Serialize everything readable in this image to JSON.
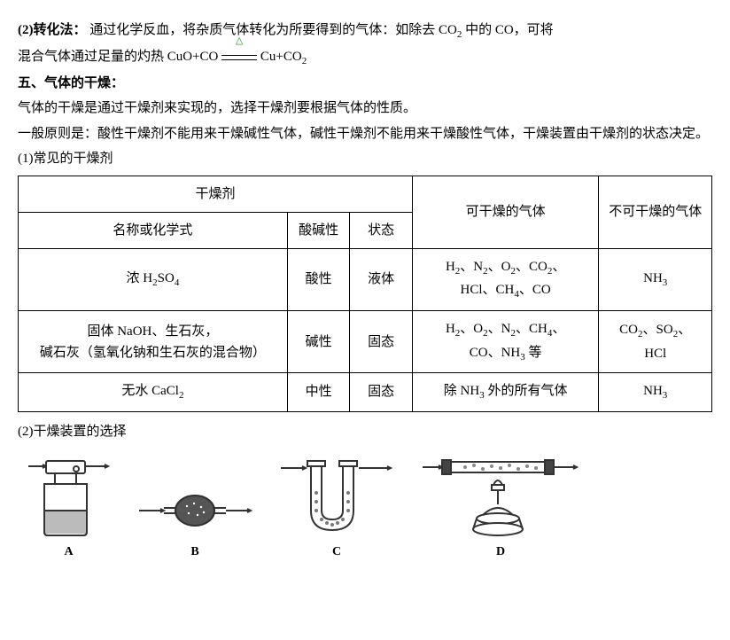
{
  "section2": {
    "heading_inline": "(2)转化法：",
    "text_part1": "通过化学反血，将杂质气体转化为所要得到的气体：如除去 CO",
    "text_part2": " 中的 CO，可将",
    "line2_a": "混合气体通过足量的灼热 CuO+CO",
    "line2_b": "Cu+CO"
  },
  "section5": {
    "heading": "五、气体的干燥：",
    "p1": "气体的干燥是通过干燥剂来实现的，选择干燥剂要根据气体的性质。",
    "p2": "一般原则是：酸性干燥剂不能用来干燥碱性气体，碱性干燥剂不能用来干燥酸性气体，干燥装置由干燥剂的状态决定。",
    "sub1_heading": "(1)常见的干燥剂",
    "table": {
      "hdr_desiccant": "干燥剂",
      "hdr_name": "名称或化学式",
      "hdr_acidbase": "酸碱性",
      "hdr_state": "状态",
      "hdr_can": "可干燥的气体",
      "hdr_cannot": "不可干燥的气体",
      "rows": [
        {
          "name_html": "浓 H<sub>2</sub>SO<sub>4</sub>",
          "acidbase": "酸性",
          "state": "液体",
          "can_html": "H<sub>2</sub>、N<sub>2</sub>、O<sub>2</sub>、CO<sub>2</sub>、<br>HCl、CH<sub>4</sub>、CO",
          "cannot_html": "NH<sub>3</sub>"
        },
        {
          "name_html": "固体 NaOH、生石灰，<br>碱石灰（氢氧化钠和生石灰的混合物）",
          "acidbase": "碱性",
          "state": "固态",
          "can_html": "H<sub>2</sub>、O<sub>2</sub>、N<sub>2</sub>、CH<sub>4</sub>、<br>CO、NH<sub>3</sub> 等",
          "cannot_html": "CO<sub>2</sub>、SO<sub>2</sub>、<br>HCl"
        },
        {
          "name_html": "无水 CaCl<sub>2</sub>",
          "acidbase": "中性",
          "state": "固态",
          "can_html": "除 NH<sub>3</sub> 外的所有气体",
          "cannot_html": "NH<sub>3</sub>"
        }
      ]
    },
    "sub2_heading": "(2)干燥装置的选择",
    "apparatus_labels": [
      "A",
      "B",
      "C",
      "D"
    ]
  },
  "style": {
    "text_color": "#000000",
    "background": "#ffffff",
    "font_size_body": 15,
    "font_size_sub": 11,
    "delta_color": "#2a8a2a",
    "table_border_color": "#000000",
    "svg_stroke": "#333333",
    "svg_fill": "#888888"
  }
}
